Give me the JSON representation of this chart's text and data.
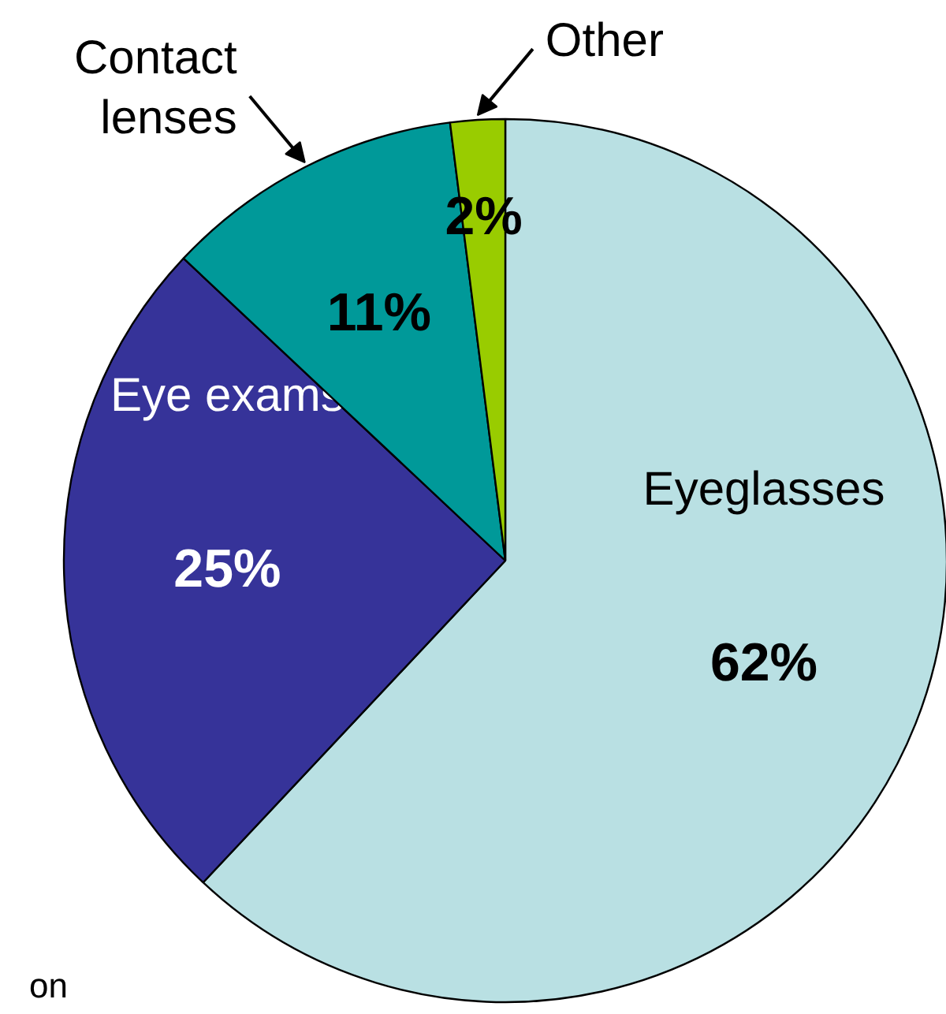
{
  "chart_data": {
    "type": "pie",
    "categories": [
      "Eyeglasses",
      "Eye exams",
      "Contact lenses",
      "Other"
    ],
    "values": [
      62,
      25,
      11,
      2
    ],
    "colors": [
      "#b9e0e3",
      "#363399",
      "#009999",
      "#99cc00"
    ],
    "value_labels": [
      "62%",
      "25%",
      "11%",
      "2%"
    ],
    "annotations": [
      "on"
    ]
  }
}
